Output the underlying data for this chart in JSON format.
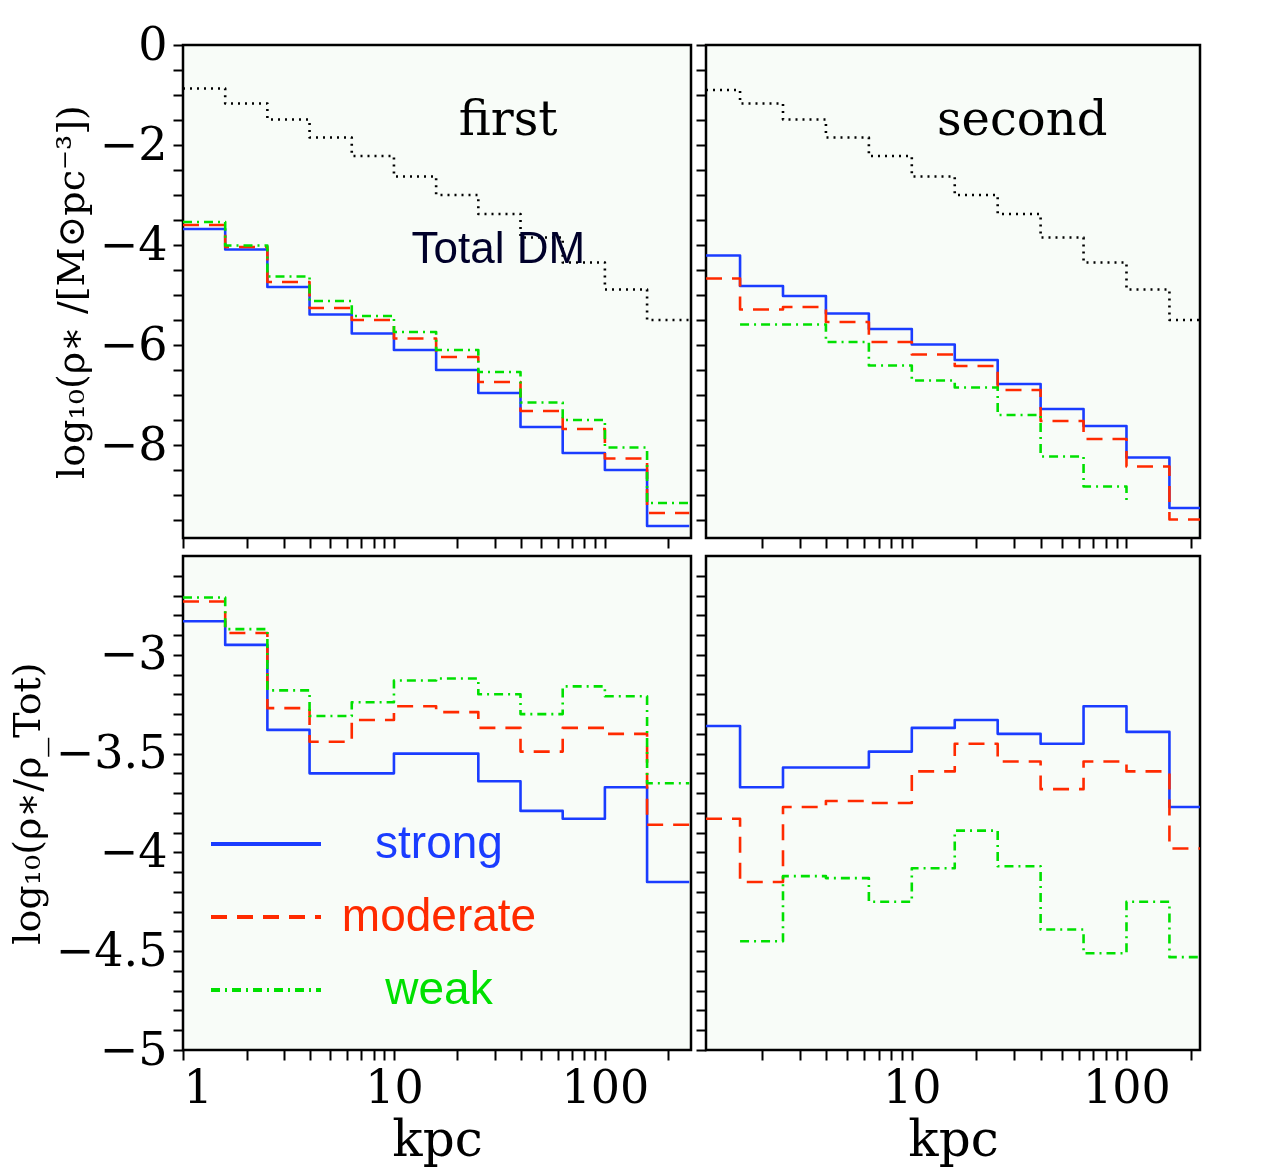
{
  "chart_data": [
    {
      "type": "step",
      "ylabel": "log₁₀(ρ∗ /[M⊙pc⁻³])",
      "annotations": [
        "first"
      ],
      "log": "x",
      "tick_labels": "y",
      "grid": false,
      "legend": false,
      "xlim": [
        1,
        256
      ],
      "xticks": [
        1,
        {
          "value": 2,
          "label": null
        },
        {
          "value": 3,
          "label": null
        },
        {
          "value": 4,
          "label": null
        },
        {
          "value": 5,
          "label": null
        },
        {
          "value": 6,
          "label": null
        },
        {
          "value": 7,
          "label": null
        },
        {
          "value": 8,
          "label": null
        },
        {
          "value": 9,
          "label": null
        },
        10,
        {
          "value": 20,
          "label": null
        },
        {
          "value": 30,
          "label": null
        },
        {
          "value": 40,
          "label": null
        },
        {
          "value": 50,
          "label": null
        },
        {
          "value": 60,
          "label": null
        },
        {
          "value": 70,
          "label": null
        },
        {
          "value": 80,
          "label": null
        },
        {
          "value": 90,
          "label": null
        },
        100,
        {
          "value": 200,
          "label": null
        }
      ],
      "ylim": [
        -9.86,
        0
      ],
      "yticks": [
        0,
        {
          "value": -0.5,
          "label": null
        },
        {
          "value": -1,
          "label": null
        },
        {
          "value": -1.5,
          "label": null
        },
        -2,
        {
          "value": -2.5,
          "label": null
        },
        {
          "value": -3,
          "label": null
        },
        {
          "value": -3.5,
          "label": null
        },
        -4,
        {
          "value": -4.5,
          "label": null
        },
        {
          "value": -5,
          "label": null
        },
        {
          "value": -5.5,
          "label": null
        },
        -6,
        {
          "value": -6.5,
          "label": null
        },
        {
          "value": -7,
          "label": null
        },
        {
          "value": -7.5,
          "label": null
        },
        -8,
        {
          "value": -8.5,
          "label": null
        },
        {
          "value": -9,
          "label": null
        },
        {
          "value": -9.5,
          "label": null
        }
      ],
      "x": [
        1,
        1.585,
        2.512,
        3.981,
        6.31,
        10,
        15.85,
        25.12,
        39.81,
        63.1,
        100,
        158.5,
        251.2
      ],
      "series": [
        {
          "name": "Total DM",
          "color": "#000000",
          "line_style": "dotted",
          "values": [
            -0.87,
            -1.17,
            -1.49,
            -1.85,
            -2.22,
            -2.63,
            -3.0,
            -3.38,
            -3.85,
            -4.35,
            -4.89,
            -5.5,
            -5.5
          ]
        },
        {
          "color": "#1a3cff",
          "line_style": "solid",
          "values": [
            -3.68,
            -4.09,
            -4.84,
            -5.39,
            -5.77,
            -6.1,
            -6.5,
            -6.96,
            -7.64,
            -8.16,
            -8.5,
            -9.62,
            -9.62
          ]
        },
        {
          "color": "#ff2a00",
          "line_style": "dashed",
          "values": [
            -3.6,
            -4.04,
            -4.74,
            -5.26,
            -5.5,
            -5.87,
            -6.24,
            -6.74,
            -7.32,
            -7.68,
            -8.27,
            -9.36,
            -9.36
          ]
        },
        {
          "color": "#00e000",
          "line_style": "dashdot",
          "values": [
            -3.54,
            -4.01,
            -4.63,
            -5.12,
            -5.42,
            -5.74,
            -6.1,
            -6.54,
            -7.15,
            -7.5,
            -8.05,
            -9.16,
            -9.16
          ]
        }
      ]
    },
    {
      "type": "step",
      "annotations": [
        "second"
      ],
      "log": "x",
      "tick_labels": false,
      "grid": false,
      "legend": false,
      "xlim": [
        1.1,
        220
      ],
      "xticks": [
        {
          "value": 2,
          "label": null
        },
        {
          "value": 3,
          "label": null
        },
        {
          "value": 4,
          "label": null
        },
        {
          "value": 5,
          "label": null
        },
        {
          "value": 6,
          "label": null
        },
        {
          "value": 7,
          "label": null
        },
        {
          "value": 8,
          "label": null
        },
        {
          "value": 9,
          "label": null
        },
        10,
        {
          "value": 20,
          "label": null
        },
        {
          "value": 30,
          "label": null
        },
        {
          "value": 40,
          "label": null
        },
        {
          "value": 50,
          "label": null
        },
        {
          "value": 60,
          "label": null
        },
        {
          "value": 70,
          "label": null
        },
        {
          "value": 80,
          "label": null
        },
        {
          "value": 90,
          "label": null
        },
        100,
        {
          "value": 200,
          "label": null
        }
      ],
      "ylim": [
        -9.86,
        0
      ],
      "yticks": [
        0,
        {
          "value": -0.5,
          "label": null
        },
        {
          "value": -1,
          "label": null
        },
        {
          "value": -1.5,
          "label": null
        },
        -2,
        {
          "value": -2.5,
          "label": null
        },
        {
          "value": -3,
          "label": null
        },
        {
          "value": -3.5,
          "label": null
        },
        -4,
        {
          "value": -4.5,
          "label": null
        },
        {
          "value": -5,
          "label": null
        },
        {
          "value": -5.5,
          "label": null
        },
        -6,
        {
          "value": -6.5,
          "label": null
        },
        {
          "value": -7,
          "label": null
        },
        {
          "value": -7.5,
          "label": null
        },
        -8,
        {
          "value": -8.5,
          "label": null
        },
        {
          "value": -9,
          "label": null
        },
        {
          "value": -9.5,
          "label": null
        }
      ],
      "x": [
        1.1,
        1.585,
        2.512,
        3.981,
        6.31,
        10,
        15.85,
        25.12,
        39.81,
        63.1,
        100,
        158.5,
        220
      ],
      "series": [
        {
          "color": "#000000",
          "line_style": "dotted",
          "values": [
            -0.9,
            -1.17,
            -1.49,
            -1.85,
            -2.22,
            -2.63,
            -3.0,
            -3.38,
            -3.85,
            -4.35,
            -4.89,
            -5.5,
            -5.5
          ]
        },
        {
          "color": "#1a3cff",
          "line_style": "solid",
          "values": [
            -4.21,
            -4.82,
            -5.02,
            -5.37,
            -5.68,
            -5.99,
            -6.3,
            -6.78,
            -7.28,
            -7.62,
            -8.25,
            -9.26,
            -9.26
          ]
        },
        {
          "color": "#ff2a00",
          "line_style": "dashed",
          "values": [
            -4.67,
            -5.29,
            -5.24,
            -5.54,
            -5.94,
            -6.19,
            -6.42,
            -6.9,
            -7.52,
            -7.88,
            -8.43,
            -9.49,
            -9.49
          ]
        },
        {
          "color": "#00e000",
          "line_style": "dashdot",
          "values": [
            null,
            -5.59,
            -5.59,
            -5.94,
            -6.41,
            -6.71,
            -6.85,
            -7.4,
            -8.23,
            -8.83,
            -9.11,
            null,
            null
          ]
        }
      ]
    },
    {
      "type": "step",
      "ylabel": "log₁₀(ρ∗/ρ_Tot)",
      "xlabel": "kpc",
      "log": "x",
      "grid": false,
      "legend": "bottom left",
      "xlim": [
        1,
        256
      ],
      "xticks": [
        1,
        {
          "value": 2,
          "label": null
        },
        {
          "value": 3,
          "label": null
        },
        {
          "value": 4,
          "label": null
        },
        {
          "value": 5,
          "label": null
        },
        {
          "value": 6,
          "label": null
        },
        {
          "value": 7,
          "label": null
        },
        {
          "value": 8,
          "label": null
        },
        {
          "value": 9,
          "label": null
        },
        10,
        {
          "value": 20,
          "label": null
        },
        {
          "value": 30,
          "label": null
        },
        {
          "value": 40,
          "label": null
        },
        {
          "value": 50,
          "label": null
        },
        {
          "value": 60,
          "label": null
        },
        {
          "value": 70,
          "label": null
        },
        {
          "value": 80,
          "label": null
        },
        {
          "value": 90,
          "label": null
        },
        100,
        {
          "value": 200,
          "label": null
        }
      ],
      "ylim": [
        -5,
        -2.5
      ],
      "yticks": [
        {
          "value": -2.6,
          "label": null
        },
        {
          "value": -2.7,
          "label": null
        },
        {
          "value": -2.8,
          "label": null
        },
        {
          "value": -2.9,
          "label": null
        },
        -3,
        {
          "value": -3.1,
          "label": null
        },
        {
          "value": -3.2,
          "label": null
        },
        {
          "value": -3.3,
          "label": null
        },
        {
          "value": -3.4,
          "label": null
        },
        -3.5,
        {
          "value": -3.6,
          "label": null
        },
        {
          "value": -3.7,
          "label": null
        },
        {
          "value": -3.8,
          "label": null
        },
        {
          "value": -3.9,
          "label": null
        },
        -4,
        {
          "value": -4.1,
          "label": null
        },
        {
          "value": -4.2,
          "label": null
        },
        {
          "value": -4.3,
          "label": null
        },
        {
          "value": -4.4,
          "label": null
        },
        -4.5,
        {
          "value": -4.6,
          "label": null
        },
        {
          "value": -4.7,
          "label": null
        },
        {
          "value": -4.8,
          "label": null
        },
        {
          "value": -4.9,
          "label": null
        },
        -5
      ],
      "x": [
        1,
        1.585,
        2.512,
        3.981,
        6.31,
        10,
        15.85,
        25.12,
        39.81,
        63.1,
        100,
        158.5,
        251.2
      ],
      "series": [
        {
          "name": "strong",
          "color": "#1a3cff",
          "line_style": "solid",
          "values": [
            -2.83,
            -2.95,
            -3.38,
            -3.6,
            -3.6,
            -3.5,
            -3.5,
            -3.64,
            -3.79,
            -3.83,
            -3.67,
            -4.15,
            -4.15
          ]
        },
        {
          "name": "moderate",
          "color": "#ff2a00",
          "line_style": "dashed",
          "values": [
            -2.73,
            -2.89,
            -3.27,
            -3.44,
            -3.33,
            -3.26,
            -3.29,
            -3.37,
            -3.49,
            -3.37,
            -3.4,
            -3.86,
            -3.86
          ]
        },
        {
          "name": "weak",
          "color": "#00e000",
          "line_style": "dashdot",
          "values": [
            -2.71,
            -2.87,
            -3.18,
            -3.31,
            -3.24,
            -3.13,
            -3.12,
            -3.2,
            -3.3,
            -3.16,
            -3.21,
            -3.65,
            -3.65
          ]
        }
      ]
    },
    {
      "type": "step",
      "xlabel": "kpc",
      "log": "x",
      "tick_labels": "x",
      "grid": false,
      "legend": false,
      "xlim": [
        1.1,
        220
      ],
      "xticks": [
        {
          "value": 2,
          "label": null
        },
        {
          "value": 3,
          "label": null
        },
        {
          "value": 4,
          "label": null
        },
        {
          "value": 5,
          "label": null
        },
        {
          "value": 6,
          "label": null
        },
        {
          "value": 7,
          "label": null
        },
        {
          "value": 8,
          "label": null
        },
        {
          "value": 9,
          "label": null
        },
        10,
        {
          "value": 20,
          "label": null
        },
        {
          "value": 30,
          "label": null
        },
        {
          "value": 40,
          "label": null
        },
        {
          "value": 50,
          "label": null
        },
        {
          "value": 60,
          "label": null
        },
        {
          "value": 70,
          "label": null
        },
        {
          "value": 80,
          "label": null
        },
        {
          "value": 90,
          "label": null
        },
        100,
        {
          "value": 200,
          "label": null
        }
      ],
      "ylim": [
        -5,
        -2.5
      ],
      "yticks": [
        {
          "value": -2.6,
          "label": null
        },
        {
          "value": -2.7,
          "label": null
        },
        {
          "value": -2.8,
          "label": null
        },
        {
          "value": -2.9,
          "label": null
        },
        -3,
        {
          "value": -3.1,
          "label": null
        },
        {
          "value": -3.2,
          "label": null
        },
        {
          "value": -3.3,
          "label": null
        },
        {
          "value": -3.4,
          "label": null
        },
        -3.5,
        {
          "value": -3.6,
          "label": null
        },
        {
          "value": -3.7,
          "label": null
        },
        {
          "value": -3.8,
          "label": null
        },
        {
          "value": -3.9,
          "label": null
        },
        -4,
        {
          "value": -4.1,
          "label": null
        },
        {
          "value": -4.2,
          "label": null
        },
        {
          "value": -4.3,
          "label": null
        },
        {
          "value": -4.4,
          "label": null
        },
        -4.5,
        {
          "value": -4.6,
          "label": null
        },
        {
          "value": -4.7,
          "label": null
        },
        {
          "value": -4.8,
          "label": null
        },
        {
          "value": -4.9,
          "label": null
        },
        -5
      ],
      "x": [
        1.1,
        1.585,
        2.512,
        3.981,
        6.31,
        10,
        15.85,
        25.12,
        39.81,
        63.1,
        100,
        158.5,
        220
      ],
      "series": [
        {
          "color": "#1a3cff",
          "line_style": "solid",
          "values": [
            -3.36,
            -3.67,
            -3.57,
            -3.57,
            -3.49,
            -3.37,
            -3.33,
            -3.4,
            -3.45,
            -3.26,
            -3.39,
            -3.77,
            -3.77
          ]
        },
        {
          "color": "#ff2a00",
          "line_style": "dashed",
          "values": [
            -3.83,
            -4.15,
            -3.77,
            -3.74,
            -3.75,
            -3.59,
            -3.45,
            -3.54,
            -3.68,
            -3.54,
            -3.59,
            -3.98,
            -3.98
          ]
        },
        {
          "color": "#00e000",
          "line_style": "dashdot",
          "values": [
            null,
            -4.45,
            -4.12,
            -4.13,
            -4.25,
            -4.08,
            -3.89,
            -4.07,
            -4.39,
            -4.51,
            -4.25,
            -4.53,
            -4.53
          ]
        }
      ]
    }
  ]
}
